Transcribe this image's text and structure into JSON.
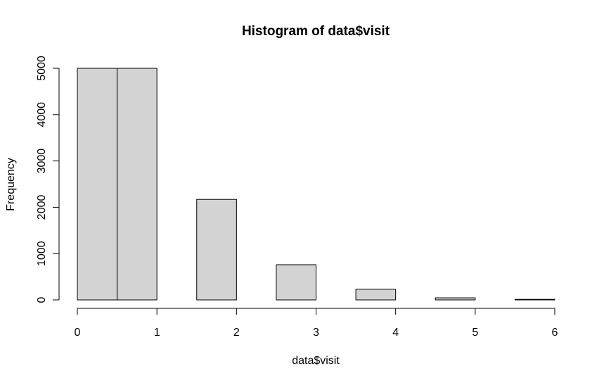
{
  "chart_data": {
    "type": "bar",
    "title": "Histogram of data$visit",
    "xlabel": "data$visit",
    "ylabel": "Frequency",
    "bins": [
      {
        "start": 0.0,
        "end": 0.5,
        "value": 5000
      },
      {
        "start": 0.5,
        "end": 1.0,
        "value": 5000
      },
      {
        "start": 1.5,
        "end": 2.0,
        "value": 2170
      },
      {
        "start": 2.5,
        "end": 3.0,
        "value": 760
      },
      {
        "start": 3.5,
        "end": 4.0,
        "value": 230
      },
      {
        "start": 4.5,
        "end": 5.0,
        "value": 45
      },
      {
        "start": 5.5,
        "end": 6.0,
        "value": 12
      }
    ],
    "xlim": [
      0,
      6
    ],
    "ylim": [
      0,
      5000
    ],
    "x_ticks": [
      "0",
      "1",
      "2",
      "3",
      "4",
      "5",
      "6"
    ],
    "y_ticks": [
      "0",
      "1000",
      "2000",
      "3000",
      "4000",
      "5000"
    ],
    "grid": false,
    "colors": {
      "bar_fill": "#d3d3d3",
      "bar_stroke": "#000000"
    }
  }
}
